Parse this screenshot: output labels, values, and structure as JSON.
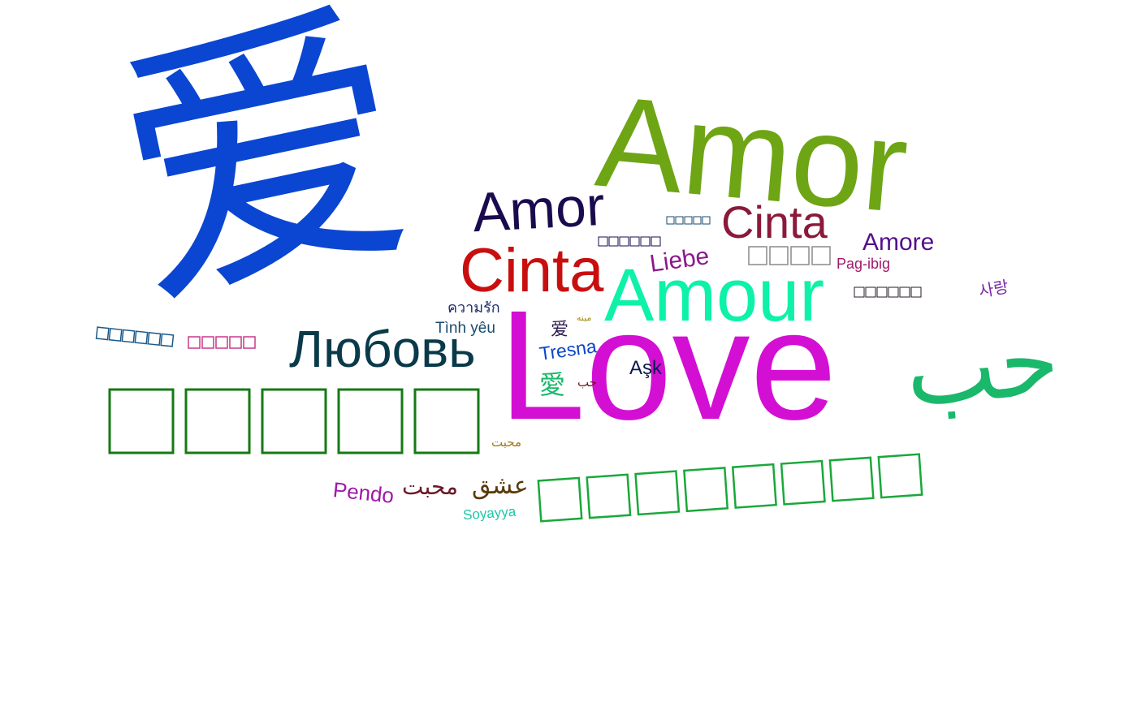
{
  "words": [
    {
      "text": "爱",
      "color": "#0a46d2"
    },
    {
      "text": "Amor",
      "color": "#6ea515"
    },
    {
      "text": "Amor",
      "color": "#1a0a4e"
    },
    {
      "text": "Cinta",
      "color": "#8a1a3a"
    },
    {
      "text": "Cinta",
      "color": "#c80f0f"
    },
    {
      "text": "Amore",
      "color": "#52108a"
    },
    {
      "text": "Liebe",
      "color": "#8a1a8a"
    },
    {
      "text": "Pag-ibig",
      "color": "#a01a6a"
    },
    {
      "text": "Amour",
      "color": "#0df2a8"
    },
    {
      "text": "사랑",
      "color": "#7a2aa8"
    },
    {
      "text": "ความรัก",
      "color": "#1a2a6e"
    },
    {
      "text": "Tình yêu",
      "color": "#1a4a6e"
    },
    {
      "text": "Любовь",
      "color": "#0a3a4a"
    },
    {
      "text": "Love",
      "color": "#d40fd4"
    },
    {
      "text": "حب",
      "color": "#1ab86a"
    },
    {
      "text": "爱",
      "color": "#2a1a4e"
    },
    {
      "text": "Tresna",
      "color": "#0a46c8"
    },
    {
      "text": "Aşk",
      "color": "#0a1a4e"
    },
    {
      "text": "愛",
      "color": "#1ab86a"
    },
    {
      "text": "حب",
      "color": "#6a1a1a"
    },
    {
      "text": "مينه",
      "color": "#a08a1a"
    },
    {
      "text": "محبت",
      "color": "#a0781a"
    },
    {
      "text": "Pendo",
      "color": "#a01aa8"
    },
    {
      "text": "محبت",
      "color": "#6a1a2a"
    },
    {
      "text": "عشق",
      "color": "#5a3a0a"
    },
    {
      "text": "Soyayya",
      "color": "#1ac8a8"
    }
  ],
  "missing_glyph_blocks": [
    {
      "count": 5,
      "color": "#157a15"
    },
    {
      "count": 8,
      "color": "#1aa83a"
    },
    {
      "count": 6,
      "color": "#1a5a8a"
    },
    {
      "count": 5,
      "color": "#c83a8a"
    },
    {
      "count": 5,
      "color": "#1a4a6e"
    },
    {
      "count": 6,
      "color": "#1a0a4e"
    },
    {
      "count": 4,
      "color": "#8a8a8a"
    },
    {
      "count": 6,
      "color": "#2a1a2a"
    }
  ]
}
